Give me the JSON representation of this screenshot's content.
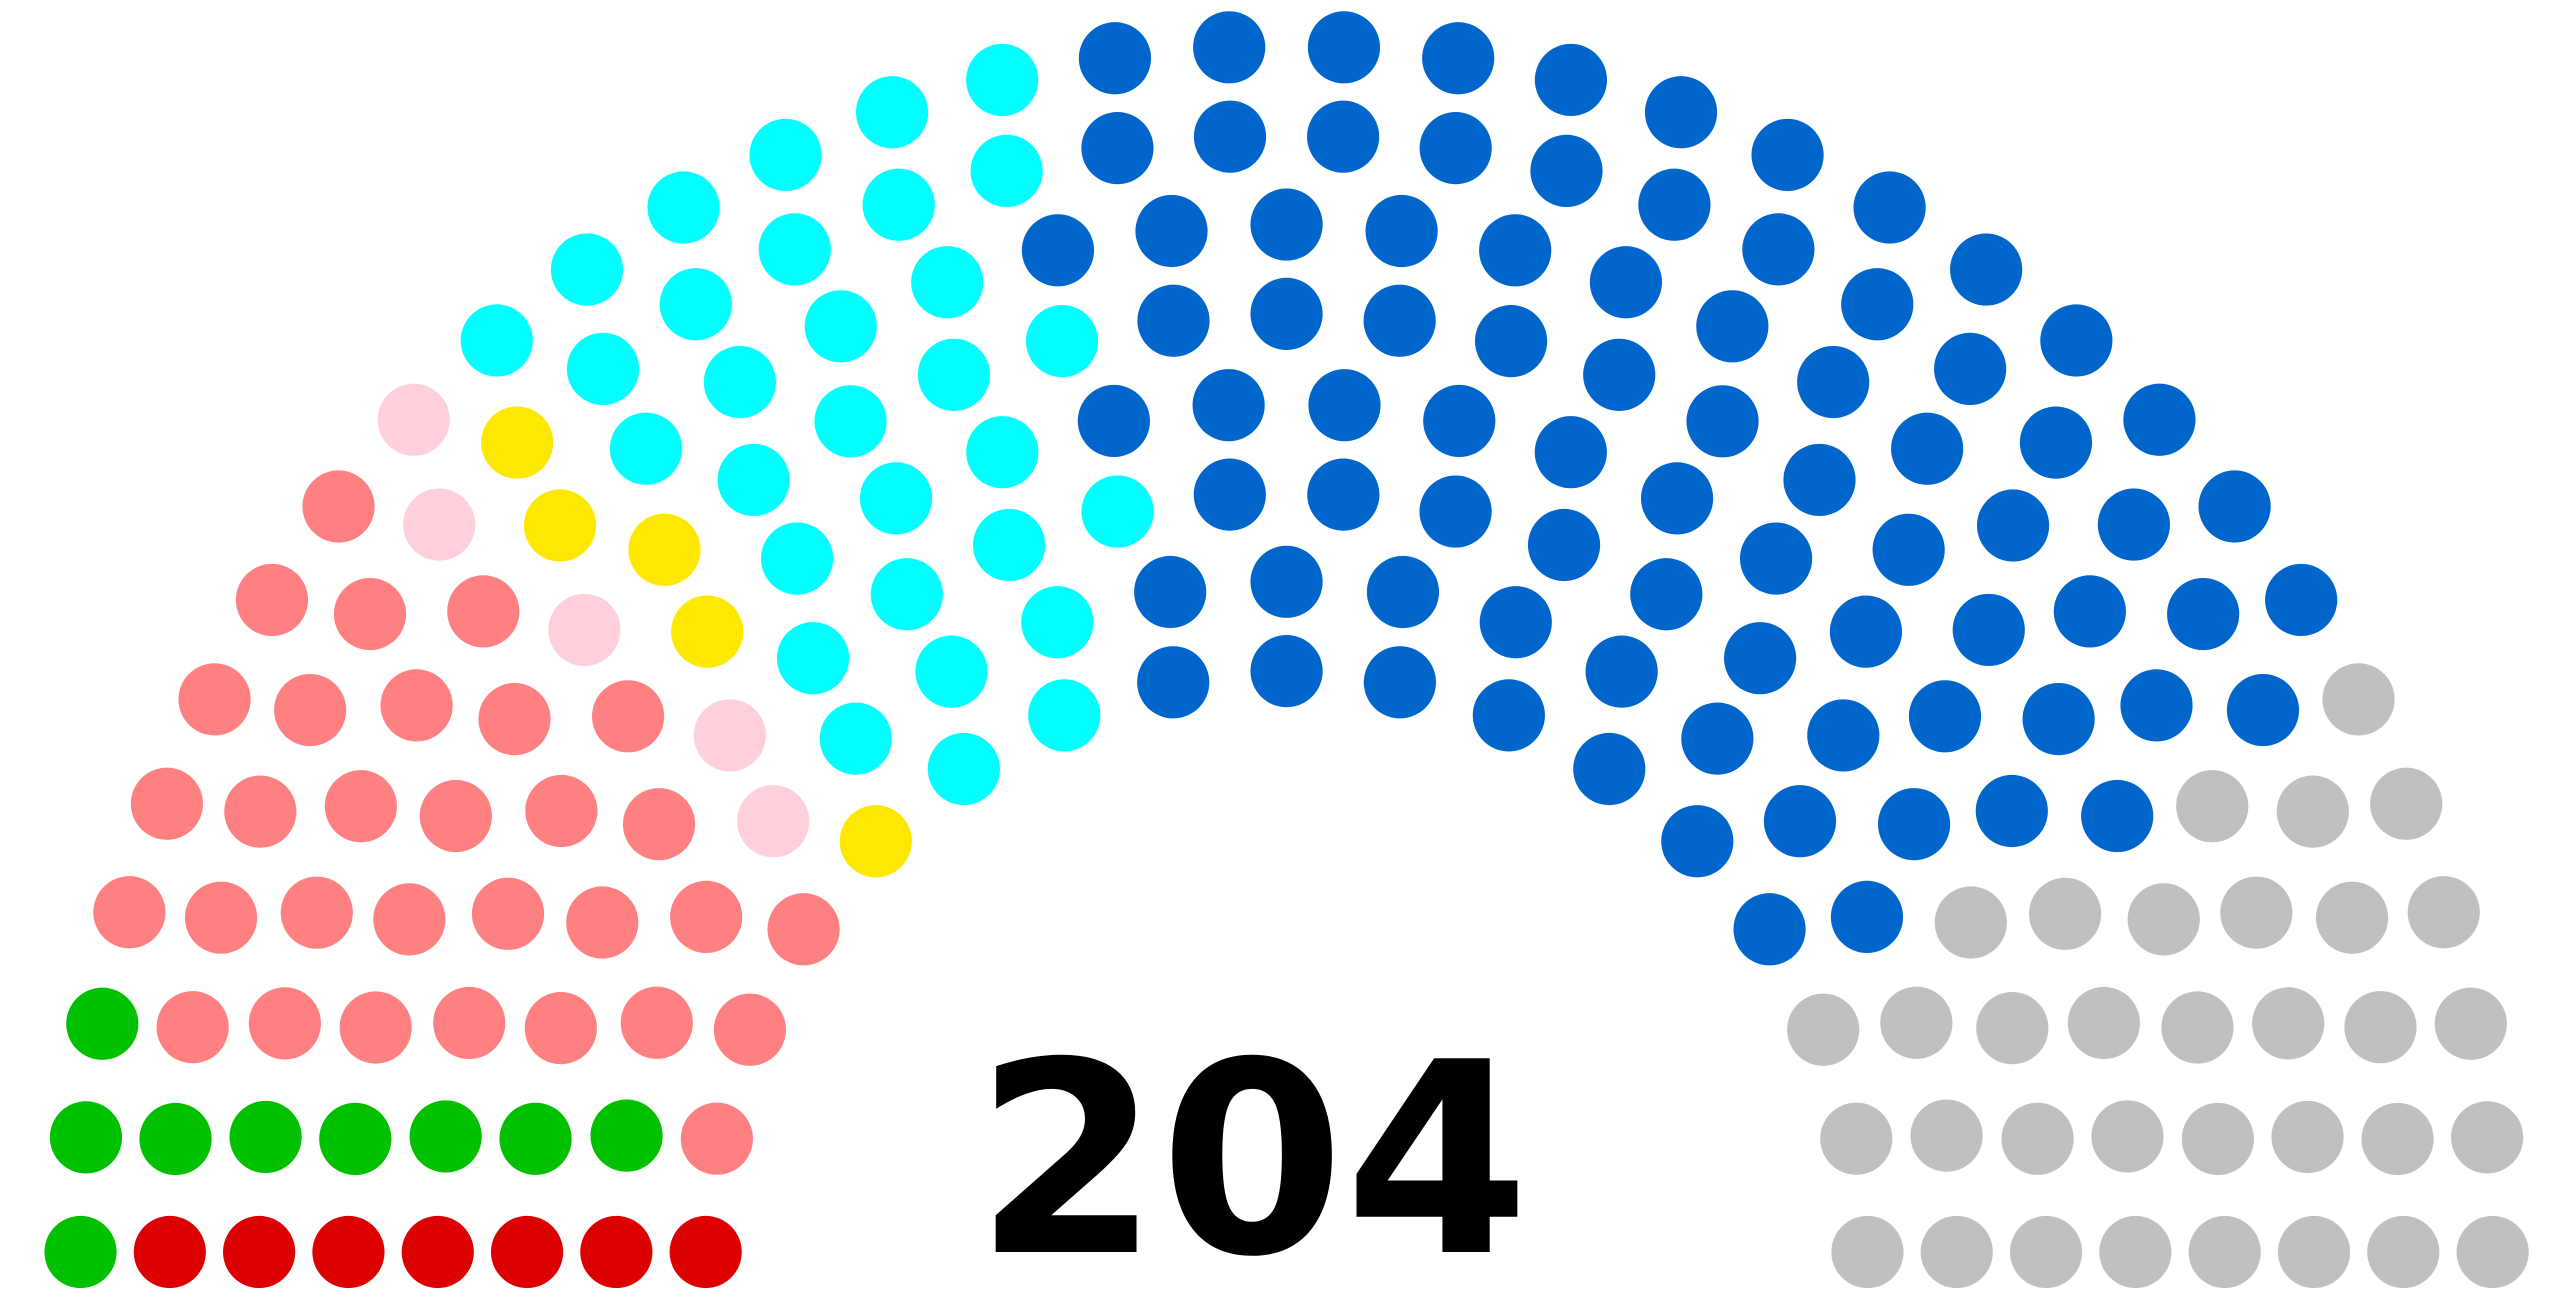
{
  "chart_data": {
    "type": "parliament",
    "total": 204,
    "values": [
      7,
      9,
      31,
      5,
      5,
      31,
      82,
      34
    ],
    "colors": [
      "#dd0000",
      "#00c000",
      "#ff8080",
      "#ffd0dc",
      "#ffe800",
      "#00ffff",
      "#0066cc",
      "#c0c0c0"
    ]
  }
}
